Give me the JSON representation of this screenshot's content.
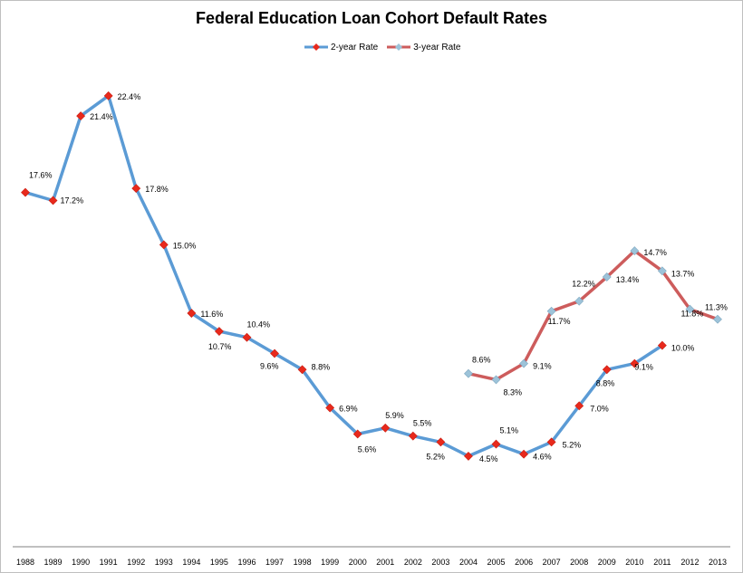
{
  "chart_data": {
    "type": "line",
    "title": "Federal Education Loan Cohort Default Rates",
    "xlabel": "",
    "ylabel": "",
    "ylim": [
      0,
      25
    ],
    "grid": false,
    "legend_position": "top-center",
    "categories": [
      "1988",
      "1989",
      "1990",
      "1991",
      "1992",
      "1993",
      "1994",
      "1995",
      "1996",
      "1997",
      "1998",
      "1999",
      "2000",
      "2001",
      "2002",
      "2003",
      "2004",
      "2005",
      "2006",
      "2007",
      "2008",
      "2009",
      "2010",
      "2011",
      "2012",
      "2013"
    ],
    "series": [
      {
        "name": "2-year Rate",
        "color": "#5b9bd5",
        "marker_color": "#e8291c",
        "values": [
          17.6,
          17.2,
          21.4,
          22.4,
          17.8,
          15.0,
          11.6,
          10.7,
          10.4,
          9.6,
          8.8,
          6.9,
          5.6,
          5.9,
          5.5,
          5.2,
          4.5,
          5.1,
          4.6,
          5.2,
          7.0,
          8.8,
          9.1,
          10.0,
          null,
          null
        ],
        "labels": [
          "17.6%",
          "17.2%",
          "21.4%",
          "22.4%",
          "17.8%",
          "15.0%",
          "11.6%",
          "10.7%",
          "10.4%",
          "9.6%",
          "8.8%",
          "6.9%",
          "5.6%",
          "5.9%",
          "5.5%",
          "5.2%",
          "4.5%",
          "5.1%",
          "4.6%",
          "5.2%",
          "7.0%",
          "8.8%",
          "9.1%",
          "10.0%",
          null,
          null
        ]
      },
      {
        "name": "3-year Rate",
        "color": "#cd5c5c",
        "marker_color": "#9dc3d9",
        "values": [
          null,
          null,
          null,
          null,
          null,
          null,
          null,
          null,
          null,
          null,
          null,
          null,
          null,
          null,
          null,
          null,
          8.6,
          8.3,
          9.1,
          11.7,
          12.2,
          13.4,
          14.7,
          13.7,
          11.8,
          11.3
        ],
        "labels": [
          null,
          null,
          null,
          null,
          null,
          null,
          null,
          null,
          null,
          null,
          null,
          null,
          null,
          null,
          null,
          null,
          "8.6%",
          "8.3%",
          "9.1%",
          "11.7%",
          "12.2%",
          "13.4%",
          "14.7%",
          "13.7%",
          "11.8%",
          "11.3%"
        ]
      }
    ]
  }
}
